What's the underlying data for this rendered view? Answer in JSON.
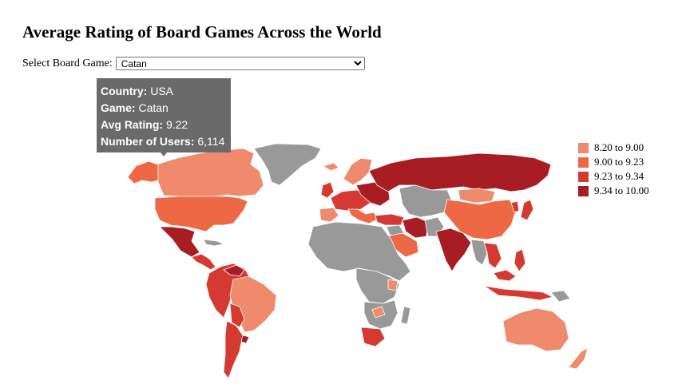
{
  "header": {
    "title": "Average Rating of Board Games Across the World"
  },
  "selector": {
    "label": "Select Board Game:",
    "selected": "Catan"
  },
  "tooltip": {
    "country_label": "Country:",
    "country": "USA",
    "game_label": "Game:",
    "game": "Catan",
    "rating_label": "Avg Rating:",
    "rating": "9.22",
    "users_label": "Number of Users:",
    "users": "6,114"
  },
  "legend": {
    "items": [
      {
        "label": "8.20 to 9.00",
        "color": "#f08a6c"
      },
      {
        "label": "9.00 to 9.23",
        "color": "#ee6846"
      },
      {
        "label": "9.23 to 9.34",
        "color": "#d53a32"
      },
      {
        "label": "9.34 to 10.00",
        "color": "#a71d23"
      }
    ]
  },
  "colors": {
    "no_data": "#999999",
    "tooltip_bg": "#6a6a6a"
  }
}
